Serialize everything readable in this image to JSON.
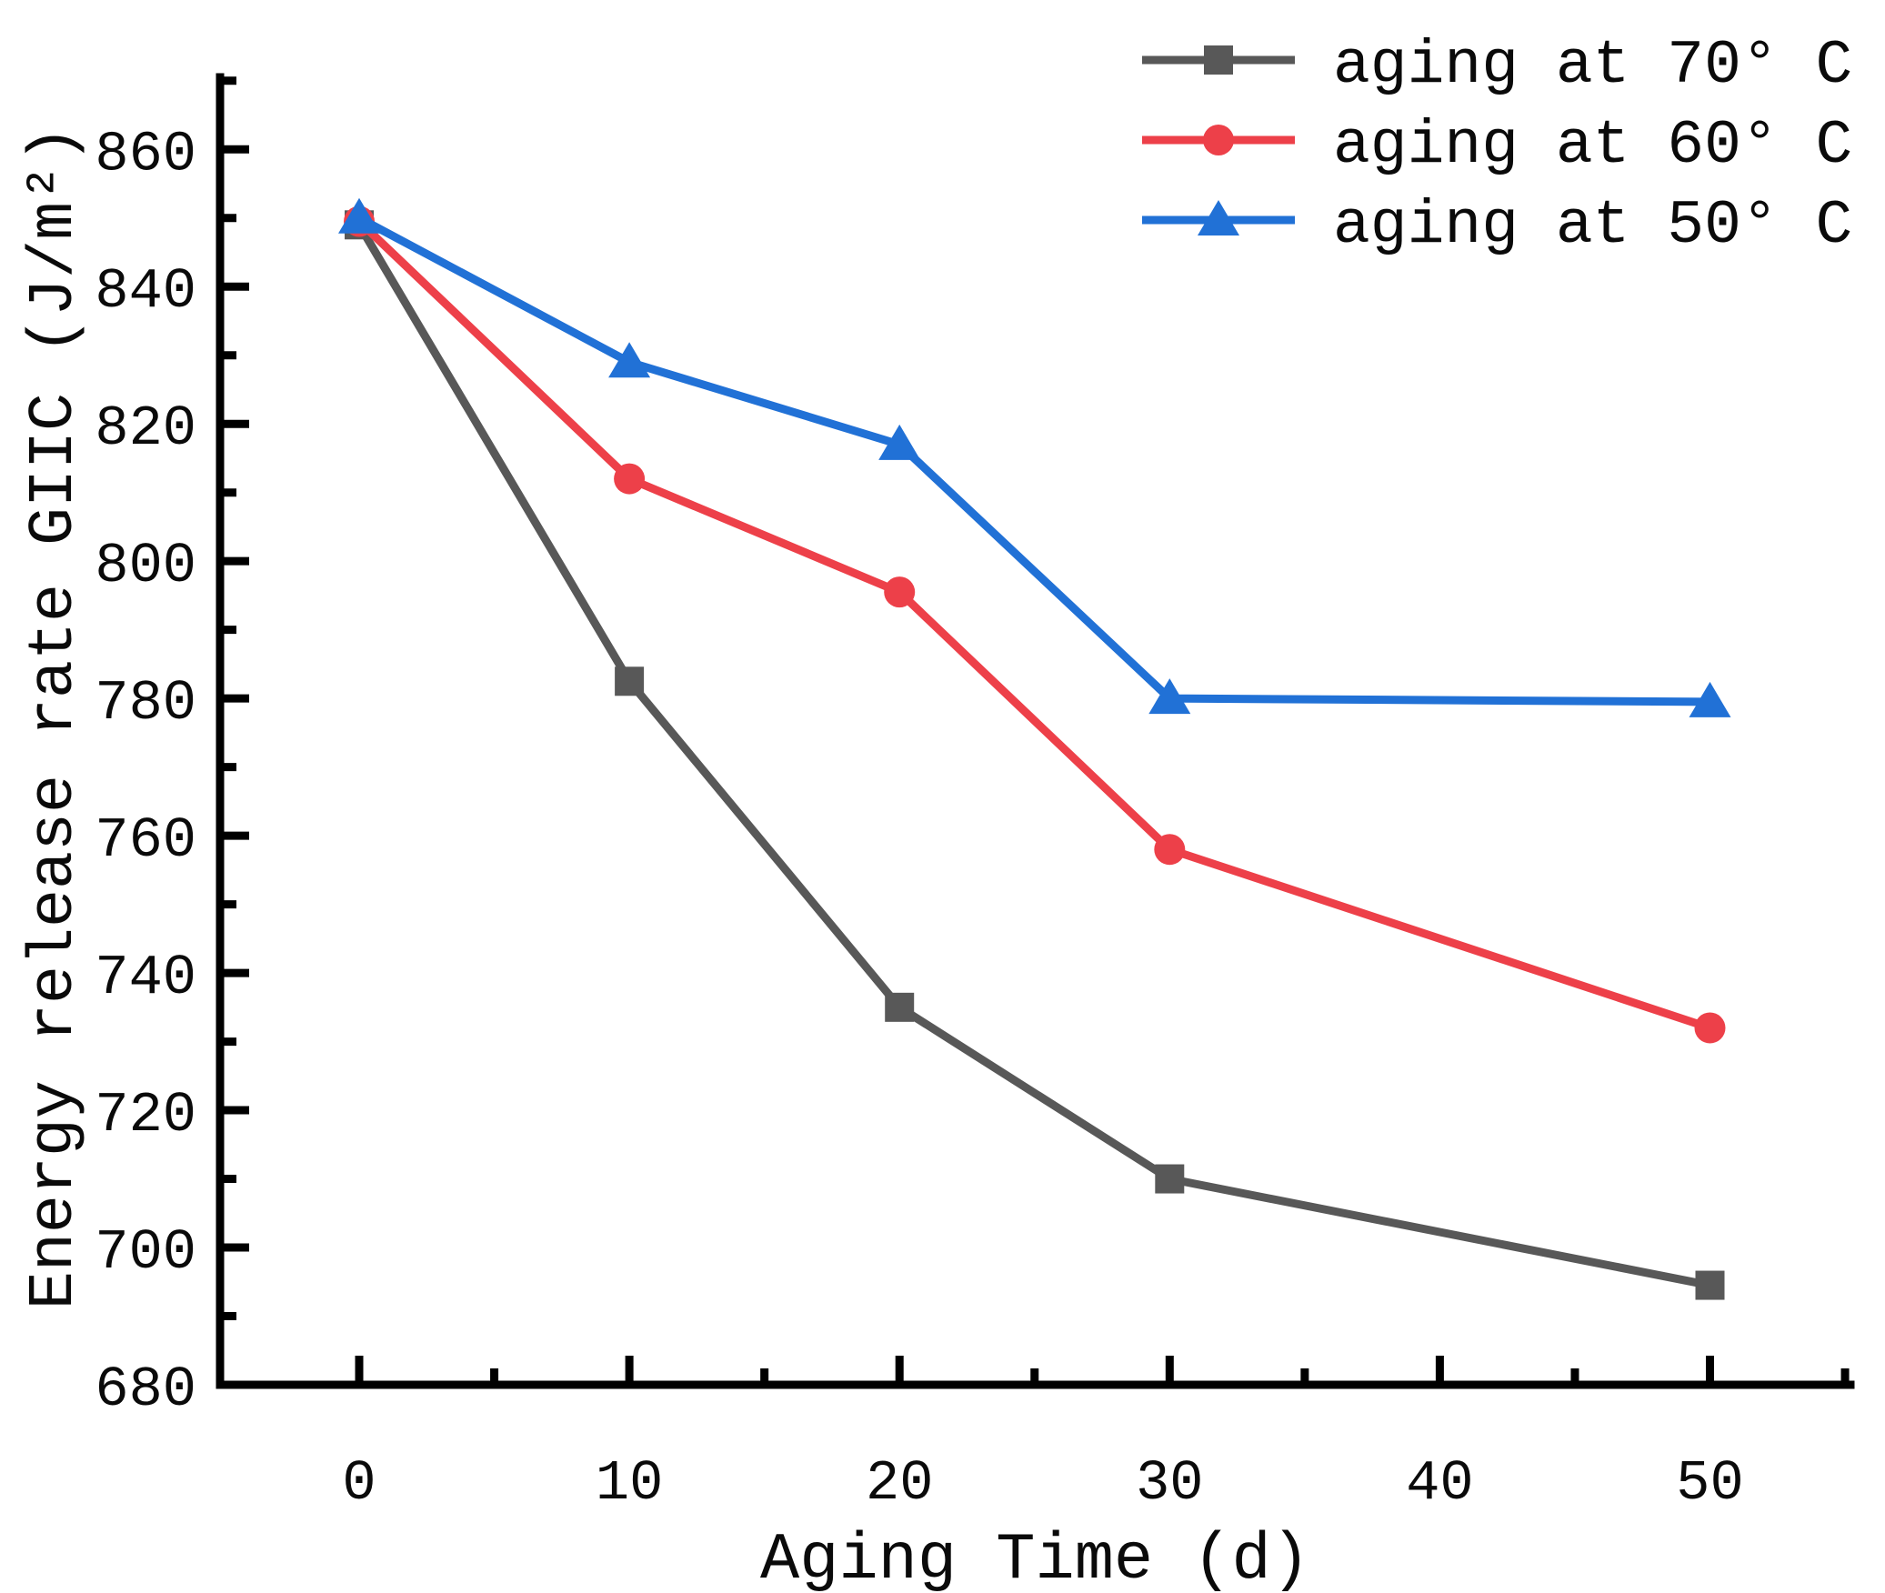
{
  "figure": {
    "background": "#ffffff",
    "axis_color": "#000000",
    "text_color": "#0a0a0a"
  },
  "chart_data": {
    "type": "line",
    "title": "",
    "xlabel": "Aging Time (d)",
    "ylabel": "Energy release rate GIIC (J/m²)",
    "x": [
      0,
      10,
      20,
      30,
      50
    ],
    "series": [
      {
        "name": "aging at 70° C",
        "color": "#585858",
        "marker": "square",
        "values": [
          849,
          782.5,
          735,
          710,
          694.5
        ]
      },
      {
        "name": "aging at 60° C",
        "color": "#ed4049",
        "marker": "circle",
        "values": [
          849.5,
          812,
          795.5,
          758,
          732
        ]
      },
      {
        "name": "aging at 50° C",
        "color": "#2171d6",
        "marker": "triangle",
        "values": [
          850,
          829,
          817,
          780,
          779.5
        ]
      }
    ],
    "xlim": [
      -5.15,
      55.2
    ],
    "ylim": [
      680,
      870.5
    ],
    "x_major_ticks": [
      0,
      10,
      20,
      30,
      40,
      50
    ],
    "x_minor_ticks": [
      5,
      15,
      25,
      35,
      45,
      55
    ],
    "y_major_ticks": [
      680,
      700,
      720,
      740,
      760,
      780,
      800,
      820,
      840,
      860
    ],
    "y_minor_ticks": [
      690,
      710,
      730,
      750,
      770,
      790,
      810,
      830,
      850,
      870
    ],
    "grid": false,
    "legend_position": "top-right"
  }
}
